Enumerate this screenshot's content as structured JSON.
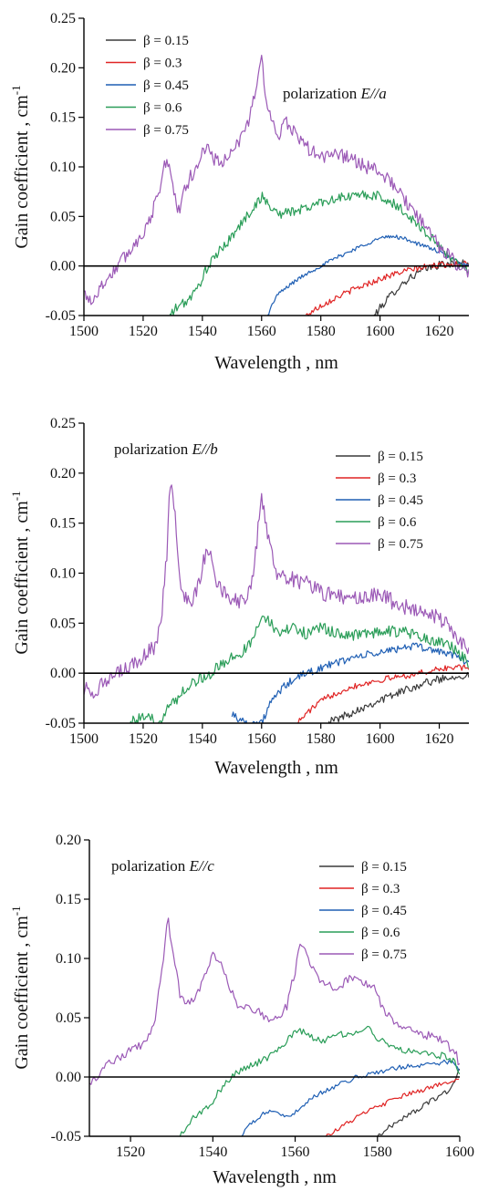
{
  "figure": {
    "panels": [
      {
        "annotation_prefix": "polarization ",
        "annotation_em": "E//a",
        "xlabel": "Wavelength , nm",
        "ylabel": "Gain coefficient , cm",
        "ylabel_sup": "-1"
      },
      {
        "annotation_prefix": "polarization ",
        "annotation_em": "E//b",
        "xlabel": "Wavelength , nm",
        "ylabel": "Gain coefficient , cm",
        "ylabel_sup": "-1"
      },
      {
        "annotation_prefix": "polarization ",
        "annotation_em": "E//c",
        "xlabel": "Wavelength , nm",
        "ylabel": "Gain coefficient , cm",
        "ylabel_sup": "-1"
      }
    ]
  },
  "chart_data": [
    {
      "type": "line",
      "title": "",
      "xlabel": "Wavelength , nm",
      "ylabel": "Gain coefficient , cm-1",
      "xlim": [
        1500,
        1630
      ],
      "ylim": [
        -0.05,
        0.25
      ],
      "xticks": [
        1500,
        1520,
        1540,
        1560,
        1580,
        1600,
        1620
      ],
      "yticks": [
        -0.05,
        0.0,
        0.05,
        0.1,
        0.15,
        0.2,
        0.25
      ],
      "legend_position": "top-left",
      "series": [
        {
          "name": "β = 0.15",
          "color": "#3a3a3a",
          "noise": 0.004,
          "x": [
            1598,
            1602,
            1606,
            1610,
            1614,
            1618,
            1622,
            1626,
            1630
          ],
          "y": [
            -0.05,
            -0.035,
            -0.022,
            -0.012,
            -0.005,
            0.0,
            0.002,
            0.002,
            0.003
          ]
        },
        {
          "name": "β = 0.3",
          "color": "#e02424",
          "noise": 0.003,
          "x": [
            1575,
            1580,
            1585,
            1590,
            1595,
            1600,
            1605,
            1610,
            1615,
            1620,
            1625,
            1630
          ],
          "y": [
            -0.05,
            -0.04,
            -0.032,
            -0.025,
            -0.019,
            -0.013,
            -0.008,
            -0.004,
            -0.001,
            0.001,
            0.002,
            0.003
          ]
        },
        {
          "name": "β = 0.45",
          "color": "#1f5fb4",
          "noise": 0.002,
          "x": [
            1562,
            1565,
            1570,
            1575,
            1580,
            1585,
            1590,
            1595,
            1600,
            1605,
            1610,
            1613,
            1618,
            1622,
            1626,
            1630
          ],
          "y": [
            -0.05,
            -0.03,
            -0.018,
            -0.008,
            0.0,
            0.008,
            0.015,
            0.022,
            0.028,
            0.03,
            0.026,
            0.022,
            0.017,
            0.011,
            0.005,
            0.0
          ]
        },
        {
          "name": "β = 0.6",
          "color": "#2a9d58",
          "noise": 0.005,
          "x": [
            1529,
            1532,
            1535,
            1538,
            1541,
            1545,
            1550,
            1555,
            1558,
            1560,
            1563,
            1566,
            1570,
            1575,
            1580,
            1585,
            1590,
            1595,
            1600,
            1605,
            1610,
            1615,
            1620,
            1625,
            1630
          ],
          "y": [
            -0.05,
            -0.04,
            -0.035,
            -0.025,
            -0.005,
            0.012,
            0.03,
            0.05,
            0.062,
            0.07,
            0.06,
            0.052,
            0.055,
            0.058,
            0.065,
            0.068,
            0.07,
            0.072,
            0.07,
            0.062,
            0.05,
            0.035,
            0.02,
            0.005,
            -0.005
          ]
        },
        {
          "name": "β = 0.75",
          "color": "#9b59b6",
          "noise": 0.007,
          "x": [
            1500,
            1503,
            1506,
            1510,
            1514,
            1518,
            1522,
            1525,
            1527,
            1528,
            1530,
            1532,
            1534,
            1536,
            1538,
            1540,
            1542,
            1544,
            1547,
            1550,
            1553,
            1556,
            1558,
            1560,
            1562,
            1564,
            1566,
            1568,
            1570,
            1575,
            1580,
            1585,
            1590,
            1595,
            1600,
            1605,
            1610,
            1615,
            1620,
            1625,
            1630
          ],
          "y": [
            -0.028,
            -0.035,
            -0.02,
            -0.005,
            0.01,
            0.025,
            0.045,
            0.07,
            0.1,
            0.11,
            0.08,
            0.055,
            0.075,
            0.09,
            0.1,
            0.115,
            0.118,
            0.108,
            0.105,
            0.112,
            0.13,
            0.15,
            0.18,
            0.207,
            0.16,
            0.14,
            0.13,
            0.145,
            0.14,
            0.12,
            0.11,
            0.112,
            0.11,
            0.1,
            0.095,
            0.08,
            0.06,
            0.04,
            0.02,
            0.005,
            -0.01
          ]
        }
      ]
    },
    {
      "type": "line",
      "title": "",
      "xlabel": "Wavelength , nm",
      "ylabel": "Gain coefficient , cm-1",
      "xlim": [
        1500,
        1630
      ],
      "ylim": [
        -0.05,
        0.25
      ],
      "xticks": [
        1500,
        1520,
        1540,
        1560,
        1580,
        1600,
        1620
      ],
      "yticks": [
        -0.05,
        0.0,
        0.05,
        0.1,
        0.15,
        0.2,
        0.25
      ],
      "legend_position": "top-right",
      "series": [
        {
          "name": "β = 0.15",
          "color": "#3a3a3a",
          "noise": 0.004,
          "x": [
            1582,
            1586,
            1590,
            1595,
            1600,
            1605,
            1610,
            1615,
            1620,
            1625,
            1630
          ],
          "y": [
            -0.05,
            -0.045,
            -0.04,
            -0.033,
            -0.027,
            -0.021,
            -0.015,
            -0.01,
            -0.006,
            -0.003,
            -0.002
          ]
        },
        {
          "name": "β = 0.3",
          "color": "#e02424",
          "noise": 0.003,
          "x": [
            1572,
            1576,
            1580,
            1585,
            1590,
            1595,
            1600,
            1605,
            1610,
            1615,
            1620,
            1625,
            1630
          ],
          "y": [
            -0.05,
            -0.038,
            -0.028,
            -0.02,
            -0.014,
            -0.01,
            -0.007,
            -0.004,
            -0.002,
            0.001,
            0.004,
            0.006,
            0.005
          ]
        },
        {
          "name": "β = 0.45",
          "color": "#1f5fb4",
          "noise": 0.004,
          "x": [
            1550,
            1552,
            1555,
            1560,
            1563,
            1567,
            1570,
            1575,
            1580,
            1585,
            1590,
            1595,
            1600,
            1605,
            1610,
            1615,
            1620,
            1625,
            1630
          ],
          "y": [
            -0.04,
            -0.045,
            -0.05,
            -0.05,
            -0.03,
            -0.015,
            -0.008,
            0.0,
            0.005,
            0.01,
            0.015,
            0.018,
            0.02,
            0.024,
            0.027,
            0.025,
            0.022,
            0.018,
            0.01
          ]
        },
        {
          "name": "β = 0.6",
          "color": "#2a9d58",
          "noise": 0.006,
          "x": [
            1515,
            1520,
            1525,
            1530,
            1535,
            1540,
            1545,
            1550,
            1555,
            1558,
            1560,
            1562,
            1565,
            1570,
            1575,
            1580,
            1585,
            1590,
            1595,
            1600,
            1605,
            1610,
            1615,
            1620,
            1625,
            1630
          ],
          "y": [
            -0.05,
            -0.045,
            -0.048,
            -0.03,
            -0.012,
            -0.005,
            0.005,
            0.015,
            0.025,
            0.04,
            0.06,
            0.055,
            0.04,
            0.045,
            0.04,
            0.045,
            0.04,
            0.038,
            0.04,
            0.04,
            0.042,
            0.04,
            0.035,
            0.03,
            0.025,
            0.01
          ]
        },
        {
          "name": "β = 0.75",
          "color": "#9b59b6",
          "noise": 0.008,
          "x": [
            1500,
            1503,
            1506,
            1510,
            1514,
            1518,
            1521,
            1524,
            1526,
            1528,
            1529,
            1531,
            1533,
            1536,
            1539,
            1541,
            1543,
            1545,
            1548,
            1552,
            1556,
            1558,
            1560,
            1562,
            1565,
            1570,
            1575,
            1580,
            1585,
            1590,
            1595,
            1600,
            1605,
            1610,
            1615,
            1620,
            1625,
            1630
          ],
          "y": [
            -0.015,
            -0.018,
            -0.012,
            -0.005,
            0.005,
            0.01,
            0.02,
            0.025,
            0.05,
            0.12,
            0.198,
            0.15,
            0.08,
            0.07,
            0.09,
            0.12,
            0.122,
            0.09,
            0.078,
            0.072,
            0.08,
            0.12,
            0.178,
            0.14,
            0.1,
            0.095,
            0.09,
            0.08,
            0.078,
            0.075,
            0.075,
            0.08,
            0.07,
            0.065,
            0.06,
            0.055,
            0.04,
            0.02
          ]
        }
      ]
    },
    {
      "type": "line",
      "title": "",
      "xlabel": "Wavelength , nm",
      "ylabel": "Gain coefficient , cm-1",
      "xlim": [
        1510,
        1600
      ],
      "ylim": [
        -0.05,
        0.2
      ],
      "xticks": [
        1520,
        1540,
        1560,
        1580,
        1600
      ],
      "yticks": [
        -0.05,
        0.0,
        0.05,
        0.1,
        0.15,
        0.2
      ],
      "legend_position": "top-right",
      "series": [
        {
          "name": "β = 0.15",
          "color": "#3a3a3a",
          "noise": 0.002,
          "x": [
            1580,
            1583,
            1586,
            1590,
            1594,
            1597,
            1599,
            1600
          ],
          "y": [
            -0.05,
            -0.042,
            -0.035,
            -0.027,
            -0.018,
            -0.012,
            -0.004,
            0.008
          ]
        },
        {
          "name": "β = 0.3",
          "color": "#e02424",
          "noise": 0.002,
          "x": [
            1567,
            1570,
            1573,
            1576,
            1580,
            1584,
            1588,
            1592,
            1596,
            1599,
            1600
          ],
          "y": [
            -0.05,
            -0.045,
            -0.038,
            -0.032,
            -0.025,
            -0.019,
            -0.014,
            -0.01,
            -0.005,
            -0.002,
            0.0
          ]
        },
        {
          "name": "β = 0.45",
          "color": "#1f5fb4",
          "noise": 0.002,
          "x": [
            1547,
            1549,
            1552,
            1554,
            1556,
            1558,
            1560,
            1563,
            1567,
            1571,
            1575,
            1580,
            1585,
            1590,
            1595,
            1598,
            1600
          ],
          "y": [
            -0.05,
            -0.04,
            -0.032,
            -0.028,
            -0.03,
            -0.035,
            -0.03,
            -0.02,
            -0.012,
            -0.006,
            0.0,
            0.004,
            0.008,
            0.01,
            0.012,
            0.013,
            0.005
          ]
        },
        {
          "name": "β = 0.6",
          "color": "#2a9d58",
          "noise": 0.003,
          "x": [
            1532,
            1534,
            1536,
            1538,
            1540,
            1542,
            1544,
            1546,
            1548,
            1551,
            1554,
            1557,
            1559,
            1561,
            1563,
            1566,
            1570,
            1574,
            1578,
            1581,
            1584,
            1588,
            1592,
            1596,
            1599,
            1600
          ],
          "y": [
            -0.05,
            -0.04,
            -0.032,
            -0.028,
            -0.02,
            -0.01,
            -0.002,
            0.004,
            0.008,
            0.012,
            0.018,
            0.025,
            0.035,
            0.04,
            0.035,
            0.03,
            0.035,
            0.038,
            0.04,
            0.03,
            0.025,
            0.022,
            0.02,
            0.018,
            0.012,
            0.0
          ]
        },
        {
          "name": "β = 0.75",
          "color": "#9b59b6",
          "noise": 0.004,
          "x": [
            1510,
            1513,
            1516,
            1520,
            1524,
            1526,
            1528,
            1529,
            1530,
            1532,
            1534,
            1536,
            1538,
            1540,
            1542,
            1544,
            1546,
            1549,
            1552,
            1555,
            1558,
            1560,
            1561,
            1563,
            1566,
            1570,
            1573,
            1576,
            1579,
            1581,
            1584,
            1588,
            1592,
            1596,
            1599,
            1600
          ],
          "y": [
            -0.005,
            0.005,
            0.015,
            0.022,
            0.03,
            0.05,
            0.1,
            0.135,
            0.11,
            0.07,
            0.062,
            0.068,
            0.085,
            0.102,
            0.1,
            0.075,
            0.062,
            0.06,
            0.052,
            0.048,
            0.06,
            0.09,
            0.115,
            0.1,
            0.08,
            0.075,
            0.082,
            0.08,
            0.078,
            0.06,
            0.045,
            0.04,
            0.035,
            0.03,
            0.02,
            0.01
          ]
        }
      ]
    }
  ]
}
